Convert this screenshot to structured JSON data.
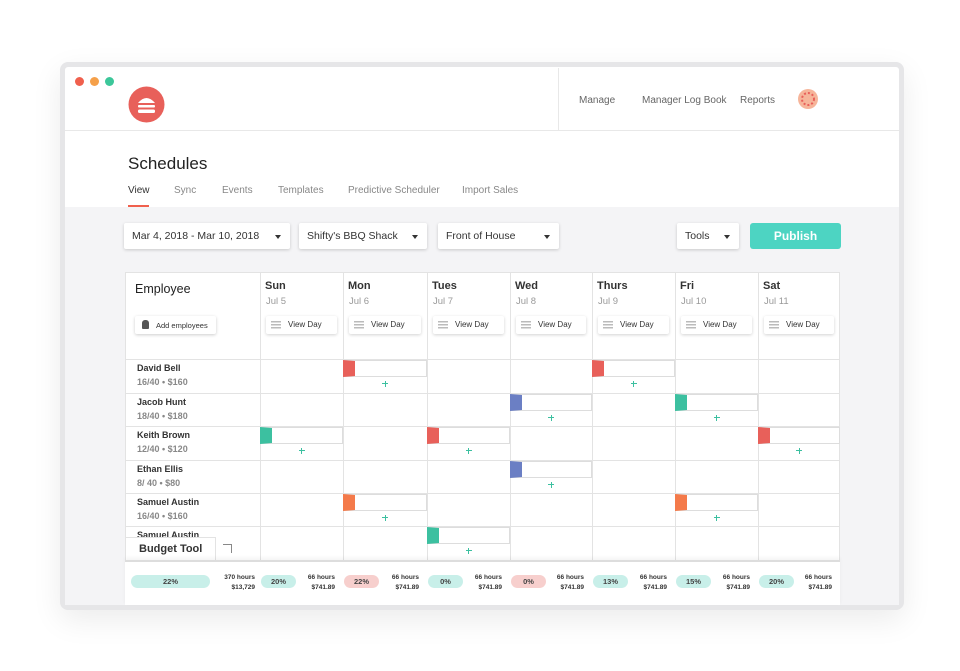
{
  "nav": {
    "items": [
      "Manage",
      "Manager Log Book",
      "Reports"
    ]
  },
  "page": {
    "title": "Schedules",
    "tabs": [
      "View",
      "Sync",
      "Events",
      "Templates",
      "Predictive Scheduler",
      "Import Sales"
    ]
  },
  "filters": {
    "date_range": "Mar 4, 2018 - Mar 10, 2018",
    "location": "Shifty's BBQ Shack",
    "department": "Front of House",
    "tools": "Tools",
    "publish": "Publish"
  },
  "schedule": {
    "employee_header": "Employee",
    "add_employees": "Add employees",
    "view_day": "View Day",
    "days": [
      {
        "name": "Sun",
        "date": "Jul 5"
      },
      {
        "name": "Mon",
        "date": "Jul 6"
      },
      {
        "name": "Tues",
        "date": "Jul 7"
      },
      {
        "name": "Wed",
        "date": "Jul 8"
      },
      {
        "name": "Thurs",
        "date": "Jul 9"
      },
      {
        "name": "Fri",
        "date": "Jul 10"
      },
      {
        "name": "Sat",
        "date": "Jul 11"
      }
    ],
    "employees": [
      {
        "name": "David Bell",
        "hours": "16/40 • $160",
        "shifts": [
          null,
          "#e8605a",
          null,
          null,
          "#e8605a",
          null,
          null
        ]
      },
      {
        "name": "Jacob Hunt",
        "hours": "18/40 • $180",
        "shifts": [
          null,
          null,
          null,
          "#6b7fc4",
          null,
          "#3cc0a0",
          null
        ]
      },
      {
        "name": "Keith Brown",
        "hours": "12/40 • $120",
        "shifts": [
          "#3cc0a0",
          null,
          "#e8605a",
          null,
          null,
          null,
          "#e8605a"
        ]
      },
      {
        "name": "Ethan Ellis",
        "hours": "8/ 40 • $80",
        "shifts": [
          null,
          null,
          null,
          "#6b7fc4",
          null,
          null,
          null
        ]
      },
      {
        "name": "Samuel Austin",
        "hours": "16/40 • $160",
        "shifts": [
          null,
          "#f47a4a",
          null,
          null,
          null,
          "#f47a4a",
          null
        ]
      },
      {
        "name": "Samuel Austin",
        "shifts": [
          null,
          null,
          "#3cc0a0",
          null,
          null,
          null,
          null
        ]
      }
    ]
  },
  "budget": {
    "title": "Budget Tool",
    "total": {
      "percent": "22%",
      "hours": "370 hours",
      "cost": "$13,729",
      "color": "#c8efe9"
    },
    "days": [
      {
        "percent": "20%",
        "hours": "66 hours",
        "cost": "$741.89",
        "color": "#c8efe9"
      },
      {
        "percent": "22%",
        "hours": "66 hours",
        "cost": "$741.89",
        "color": "#f7cfcd"
      },
      {
        "percent": "0%",
        "hours": "66 hours",
        "cost": "$741.89",
        "color": "#c8efe9"
      },
      {
        "percent": "0%",
        "hours": "66 hours",
        "cost": "$741.89",
        "color": "#f7cfcd"
      },
      {
        "percent": "13%",
        "hours": "66 hours",
        "cost": "$741.89",
        "color": "#c8efe9"
      },
      {
        "percent": "15%",
        "hours": "66 hours",
        "cost": "$741.89",
        "color": "#c8efe9"
      },
      {
        "percent": "20%",
        "hours": "66 hours",
        "cost": "$741.89",
        "color": "#c8efe9"
      }
    ]
  }
}
